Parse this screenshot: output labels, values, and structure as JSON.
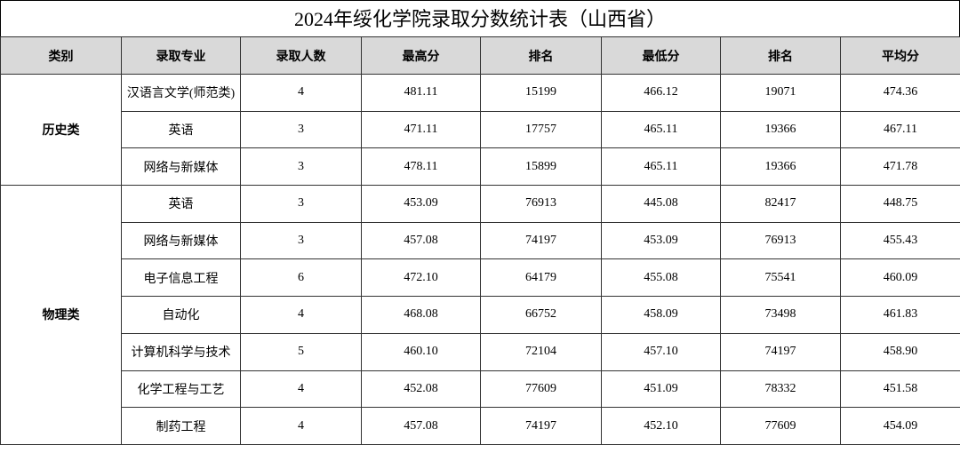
{
  "header": {
    "title": "2024年绥化学院录取分数统计表（山西省）"
  },
  "table": {
    "columns": [
      "类别",
      "录取专业",
      "录取人数",
      "最高分",
      "排名",
      "最低分",
      "排名",
      "平均分"
    ],
    "groups": [
      {
        "name": "历史类",
        "rows": [
          [
            "汉语言文学(师范类)",
            "4",
            "481.11",
            "15199",
            "466.12",
            "19071",
            "474.36"
          ],
          [
            "英语",
            "3",
            "471.11",
            "17757",
            "465.11",
            "19366",
            "467.11"
          ],
          [
            "网络与新媒体",
            "3",
            "478.11",
            "15899",
            "465.11",
            "19366",
            "471.78"
          ]
        ]
      },
      {
        "name": "物理类",
        "rows": [
          [
            "英语",
            "3",
            "453.09",
            "76913",
            "445.08",
            "82417",
            "448.75"
          ],
          [
            "网络与新媒体",
            "3",
            "457.08",
            "74197",
            "453.09",
            "76913",
            "455.43"
          ],
          [
            "电子信息工程",
            "6",
            "472.10",
            "64179",
            "455.08",
            "75541",
            "460.09"
          ],
          [
            "自动化",
            "4",
            "468.08",
            "66752",
            "458.09",
            "73498",
            "461.83"
          ],
          [
            "计算机科学与技术",
            "5",
            "460.10",
            "72104",
            "457.10",
            "74197",
            "458.90"
          ],
          [
            "化学工程与工艺",
            "4",
            "452.08",
            "77609",
            "451.09",
            "78332",
            "451.58"
          ],
          [
            "制药工程",
            "4",
            "457.08",
            "74197",
            "452.10",
            "77609",
            "454.09"
          ]
        ]
      }
    ]
  }
}
